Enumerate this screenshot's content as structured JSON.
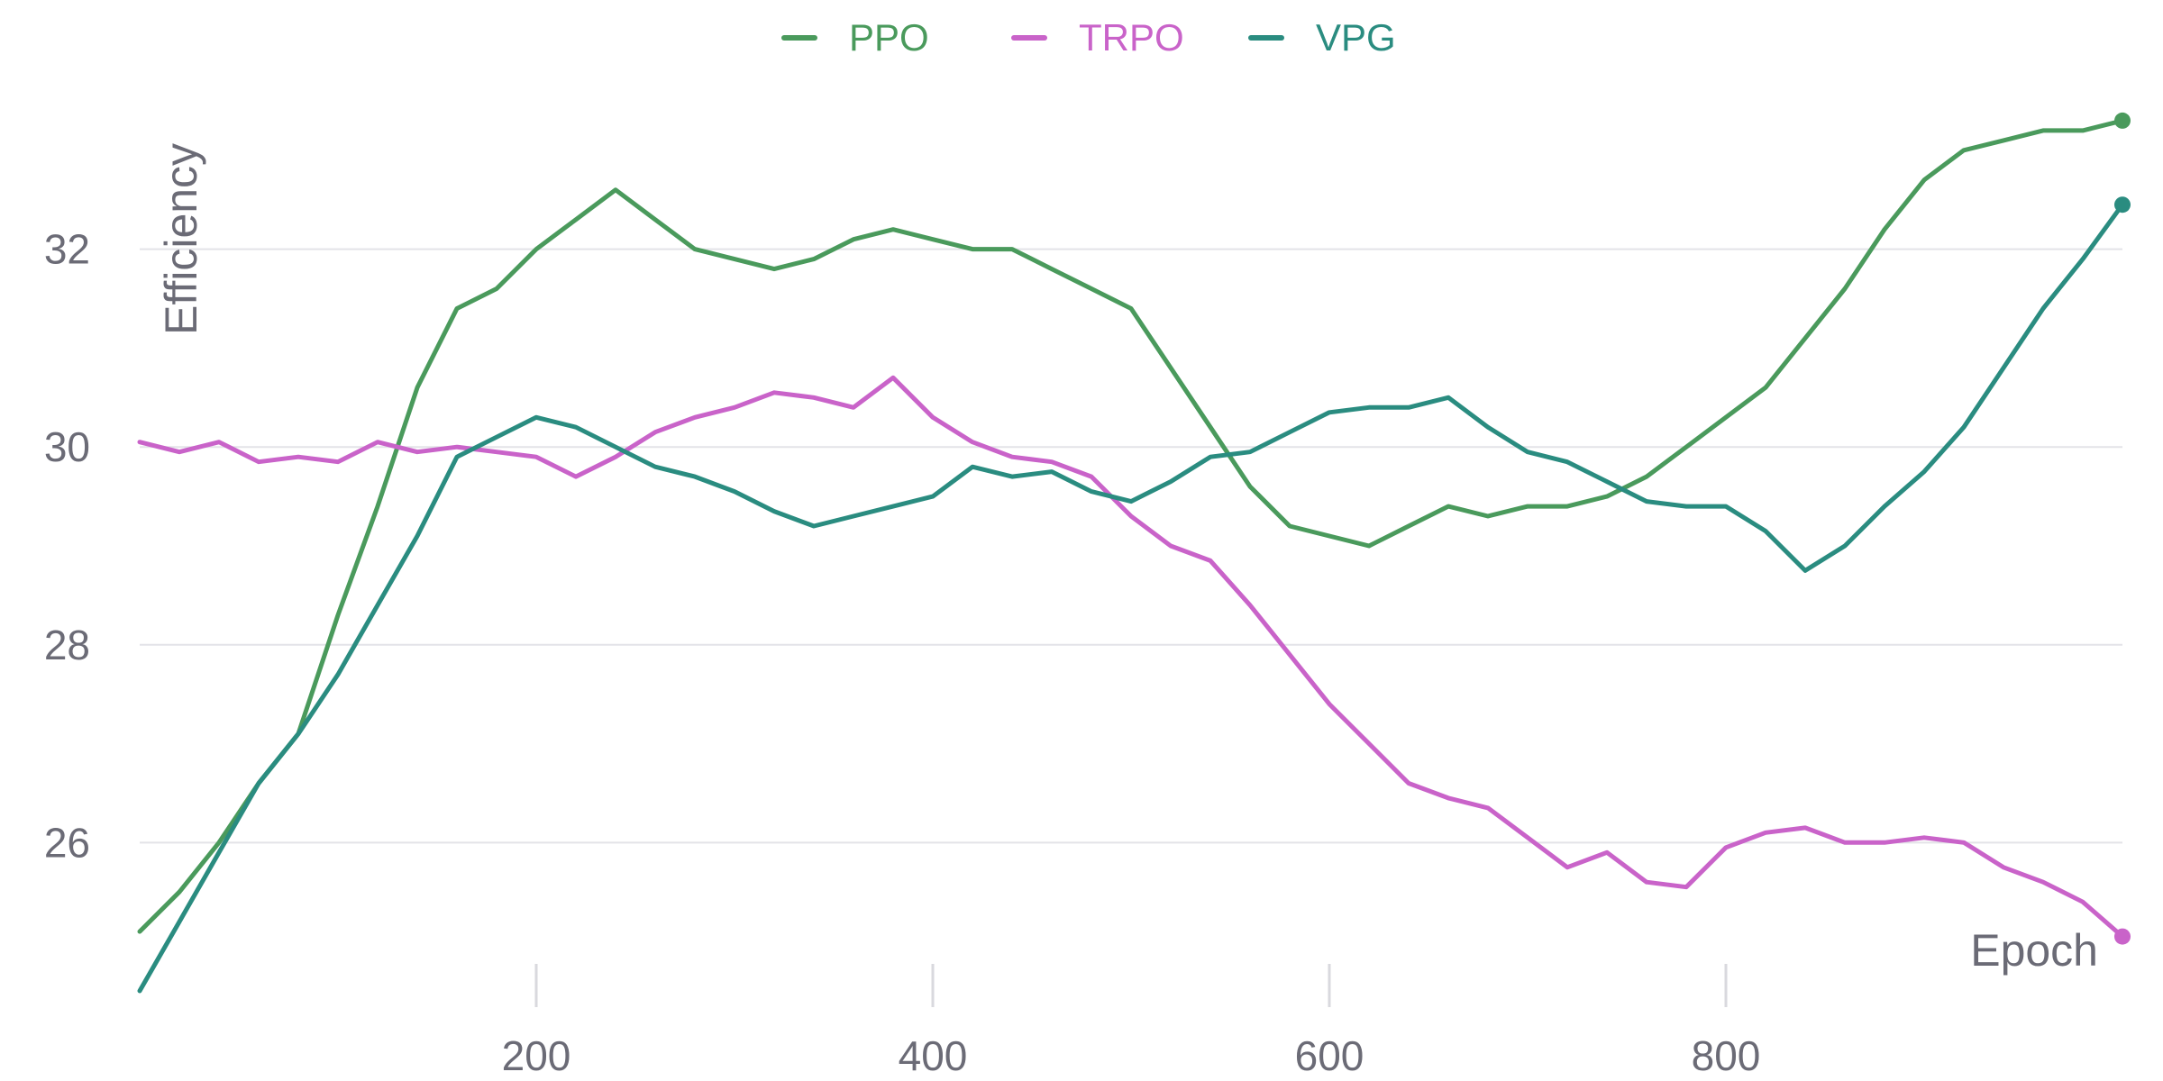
{
  "chart_data": {
    "type": "line",
    "title": "",
    "xlabel": "Epoch",
    "ylabel": "Efficiency",
    "xlim": [
      0,
      1000
    ],
    "ylim": [
      24.5,
      33.7
    ],
    "xticks": [
      200,
      400,
      600,
      800
    ],
    "yticks": [
      26,
      28,
      30,
      32
    ],
    "grid": "horizontal",
    "legend_position": "top-center",
    "x": [
      0,
      20,
      40,
      60,
      80,
      100,
      120,
      140,
      160,
      180,
      200,
      220,
      240,
      260,
      280,
      300,
      320,
      340,
      360,
      380,
      400,
      420,
      440,
      460,
      480,
      500,
      520,
      540,
      560,
      580,
      600,
      620,
      640,
      660,
      680,
      700,
      720,
      740,
      760,
      780,
      800,
      820,
      840,
      860,
      880,
      900,
      920,
      940,
      960,
      980,
      1000
    ],
    "series": [
      {
        "name": "PPO",
        "color": "#4a9a5c",
        "values": [
          25.1,
          25.5,
          26.0,
          26.6,
          27.1,
          28.3,
          29.4,
          30.6,
          31.4,
          31.6,
          32.0,
          32.3,
          32.6,
          32.3,
          32.0,
          31.9,
          31.8,
          31.9,
          32.1,
          32.2,
          32.1,
          32.0,
          32.0,
          31.8,
          31.6,
          31.4,
          30.8,
          30.2,
          29.6,
          29.2,
          29.1,
          29.0,
          29.2,
          29.4,
          29.3,
          29.4,
          29.4,
          29.5,
          29.7,
          30.0,
          30.3,
          30.6,
          31.1,
          31.6,
          32.2,
          32.7,
          33.0,
          33.1,
          33.2,
          33.2,
          33.3
        ]
      },
      {
        "name": "TRPO",
        "color": "#c963c9",
        "values": [
          30.05,
          29.95,
          30.05,
          29.85,
          29.9,
          29.85,
          30.05,
          29.95,
          30.0,
          29.95,
          29.9,
          29.7,
          29.9,
          30.15,
          30.3,
          30.4,
          30.55,
          30.5,
          30.4,
          30.7,
          30.3,
          30.05,
          29.9,
          29.85,
          29.7,
          29.3,
          29.0,
          28.85,
          28.4,
          27.9,
          27.4,
          27.0,
          26.6,
          26.45,
          26.35,
          26.05,
          25.75,
          25.9,
          25.6,
          25.55,
          25.95,
          26.1,
          26.15,
          26.0,
          26.0,
          26.05,
          26.0,
          25.75,
          25.6,
          25.4,
          25.05
        ]
      },
      {
        "name": "VPG",
        "color": "#2a8c80",
        "values": [
          24.5,
          25.2,
          25.9,
          26.6,
          27.1,
          27.7,
          28.4,
          29.1,
          29.9,
          30.1,
          30.3,
          30.2,
          30.0,
          29.8,
          29.7,
          29.55,
          29.35,
          29.2,
          29.3,
          29.4,
          29.5,
          29.8,
          29.7,
          29.75,
          29.55,
          29.45,
          29.65,
          29.9,
          29.95,
          30.15,
          30.35,
          30.4,
          30.4,
          30.5,
          30.2,
          29.95,
          29.85,
          29.65,
          29.45,
          29.4,
          29.4,
          29.15,
          28.75,
          29.0,
          29.4,
          29.75,
          30.2,
          30.8,
          31.4,
          31.9,
          32.45
        ]
      }
    ]
  }
}
